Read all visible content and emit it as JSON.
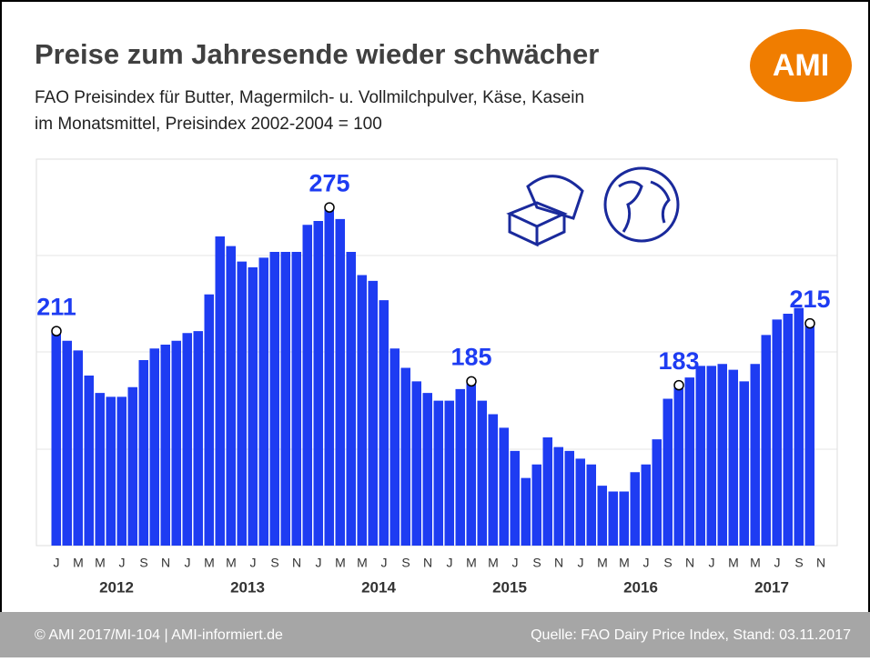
{
  "chart_data": {
    "type": "bar",
    "title": "Preise zum Jahresende wieder schwächer",
    "subtitle_lines": [
      "FAO Preisindex für Butter, Magermilch- u. Vollmilchpulver, Käse, Kasein",
      "im Monatsmittel, Preisindex 2002-2004 = 100"
    ],
    "logo": "AMI",
    "footer_left": "© AMI 2017/MI-104 | AMI-informiert.de",
    "footer_right": "Quelle: FAO Dairy Price Index, Stand: 03.11.2017",
    "color": "#1e3cf2",
    "label_color": "#1e3cf2",
    "ylim": [
      100,
      300
    ],
    "years": [
      "2012",
      "2013",
      "2014",
      "2015",
      "2016",
      "2017"
    ],
    "categories": [
      "J",
      null,
      "M",
      null,
      "M",
      null,
      "J",
      null,
      "S",
      null,
      "N",
      null,
      "J",
      null,
      "M",
      null,
      "M",
      null,
      "J",
      null,
      "S",
      null,
      "N",
      null,
      "J",
      null,
      "M",
      null,
      "M",
      null,
      "J",
      null,
      "S",
      null,
      "N",
      null,
      "J",
      null,
      "M",
      null,
      "M",
      null,
      "J",
      null,
      "S",
      null,
      "N",
      null,
      "J",
      null,
      "M",
      null,
      "M",
      null,
      "J",
      null,
      "S",
      null,
      "N",
      null,
      "J",
      null,
      "M",
      null,
      "M",
      null,
      "J",
      null,
      "S",
      null,
      "N"
    ],
    "values": [
      211,
      206,
      201,
      188,
      179,
      177,
      177,
      182,
      196,
      202,
      204,
      206,
      210,
      211,
      230,
      260,
      255,
      247,
      244,
      249,
      252,
      252,
      252,
      266,
      268,
      275,
      269,
      252,
      240,
      237,
      227,
      202,
      192,
      185,
      179,
      175,
      175,
      181,
      185,
      175,
      168,
      161,
      149,
      135,
      142,
      156,
      151,
      149,
      145,
      142,
      131,
      128,
      128,
      138,
      142,
      155,
      176,
      183,
      187,
      193,
      193,
      194,
      191,
      185,
      194,
      209,
      217,
      220,
      223,
      215,
      null
    ],
    "value_labels": [
      "211",
      null,
      null,
      null,
      null,
      null,
      null,
      null,
      null,
      null,
      null,
      null,
      null,
      null,
      null,
      null,
      null,
      null,
      null,
      null,
      null,
      null,
      null,
      null,
      null,
      "275",
      null,
      null,
      null,
      null,
      null,
      null,
      null,
      null,
      null,
      null,
      null,
      null,
      "185",
      null,
      null,
      null,
      null,
      null,
      null,
      null,
      null,
      null,
      null,
      null,
      null,
      null,
      null,
      null,
      null,
      null,
      null,
      "183",
      null,
      null,
      null,
      null,
      null,
      null,
      null,
      null,
      null,
      null,
      null,
      "215",
      null
    ]
  }
}
